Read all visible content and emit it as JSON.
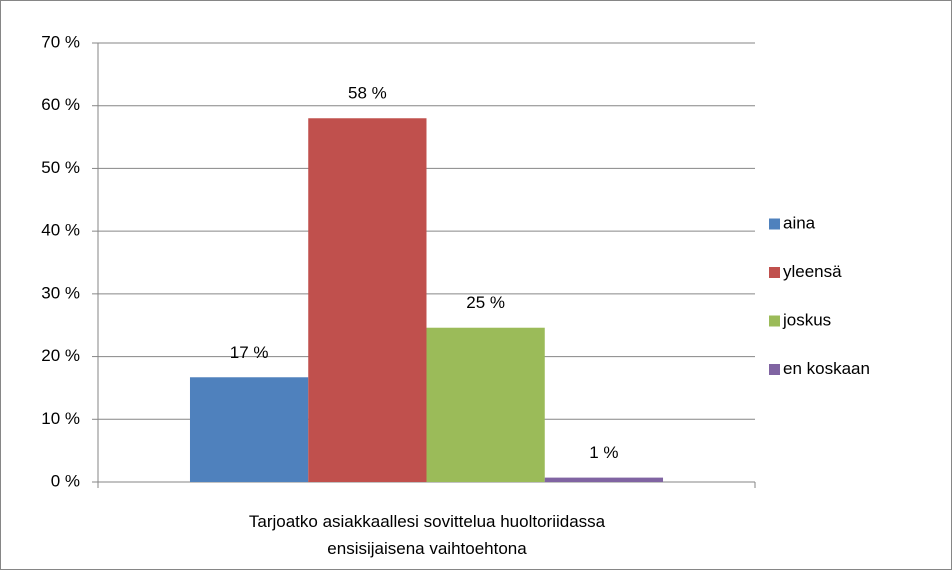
{
  "chart_data": {
    "type": "bar",
    "categories": [
      "Tarjoatko asiakkaallesi sovittelua huoltoriidassa ensisijaisena vaihtoehtona"
    ],
    "series": [
      {
        "name": "aina",
        "color": "#4f81bd",
        "values": [
          16.7
        ],
        "value_labels": [
          "17 %"
        ]
      },
      {
        "name": "yleensä",
        "color": "#c0504d",
        "values": [
          58
        ],
        "value_labels": [
          "58 %"
        ]
      },
      {
        "name": "joskus",
        "color": "#9bbb59",
        "values": [
          24.6
        ],
        "value_labels": [
          "25 %"
        ]
      },
      {
        "name": "en koskaan",
        "color": "#8064a2",
        "values": [
          0.7
        ],
        "value_labels": [
          "1 %"
        ]
      }
    ],
    "ylim": [
      0,
      70
    ],
    "yticks": [
      {
        "value": 0,
        "label": "0 %"
      },
      {
        "value": 10,
        "label": "10 %"
      },
      {
        "value": 20,
        "label": "20 %"
      },
      {
        "value": 30,
        "label": "30 %"
      },
      {
        "value": 40,
        "label": "40 %"
      },
      {
        "value": 50,
        "label": "50 %"
      },
      {
        "value": 60,
        "label": "60 %"
      },
      {
        "value": 70,
        "label": "70 %"
      }
    ],
    "grid": true,
    "legend": "right"
  }
}
